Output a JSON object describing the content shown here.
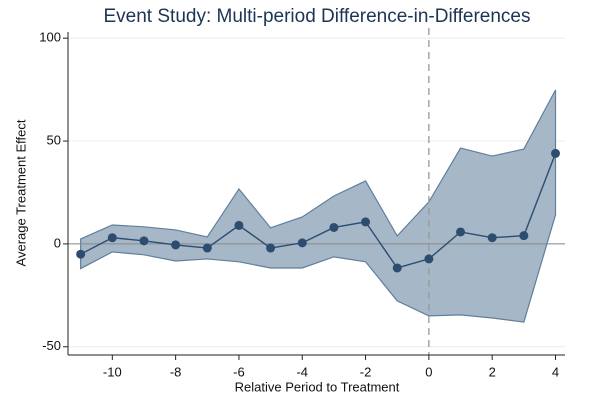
{
  "chart_data": {
    "type": "line",
    "title": "Event Study: Multi-period Difference-in-Differences",
    "xlabel": "Relative Period to Treatment",
    "ylabel": "Average Treatment Effect",
    "x": [
      -11,
      -10,
      -9,
      -8,
      -7,
      -6,
      -5,
      -4,
      -3,
      -2,
      -1,
      0,
      1,
      2,
      3,
      4
    ],
    "series": [
      {
        "color": "#2c4d70",
        "values": [
          -5,
          3,
          1.5,
          -0.5,
          -2,
          9,
          -2,
          0.5,
          8,
          10.7,
          -11.7,
          -7.3,
          5.8,
          3,
          4,
          44
        ],
        "ci_upper": [
          2.4,
          9.2,
          8.3,
          6.8,
          3.4,
          26.7,
          7.8,
          13.1,
          23.3,
          30.6,
          3.9,
          20.4,
          46.6,
          42.7,
          46.1,
          74.8
        ],
        "ci_lower": [
          -12,
          -3.9,
          -5.3,
          -8.3,
          -7.3,
          -8.7,
          -11.7,
          -11.7,
          -6.3,
          -8.7,
          -27.7,
          -35,
          -34.5,
          -36,
          -38,
          14.1
        ],
        "band_color": "#a6b7c8"
      }
    ],
    "xlim": [
      -11.4,
      4.3
    ],
    "ylim": [
      -54,
      103
    ],
    "xticks": [
      -10,
      -8,
      -6,
      -4,
      -2,
      0,
      2,
      4
    ],
    "yticks": [
      -50,
      0,
      50,
      100
    ],
    "hline": 0,
    "vline": 0,
    "grid": true
  }
}
